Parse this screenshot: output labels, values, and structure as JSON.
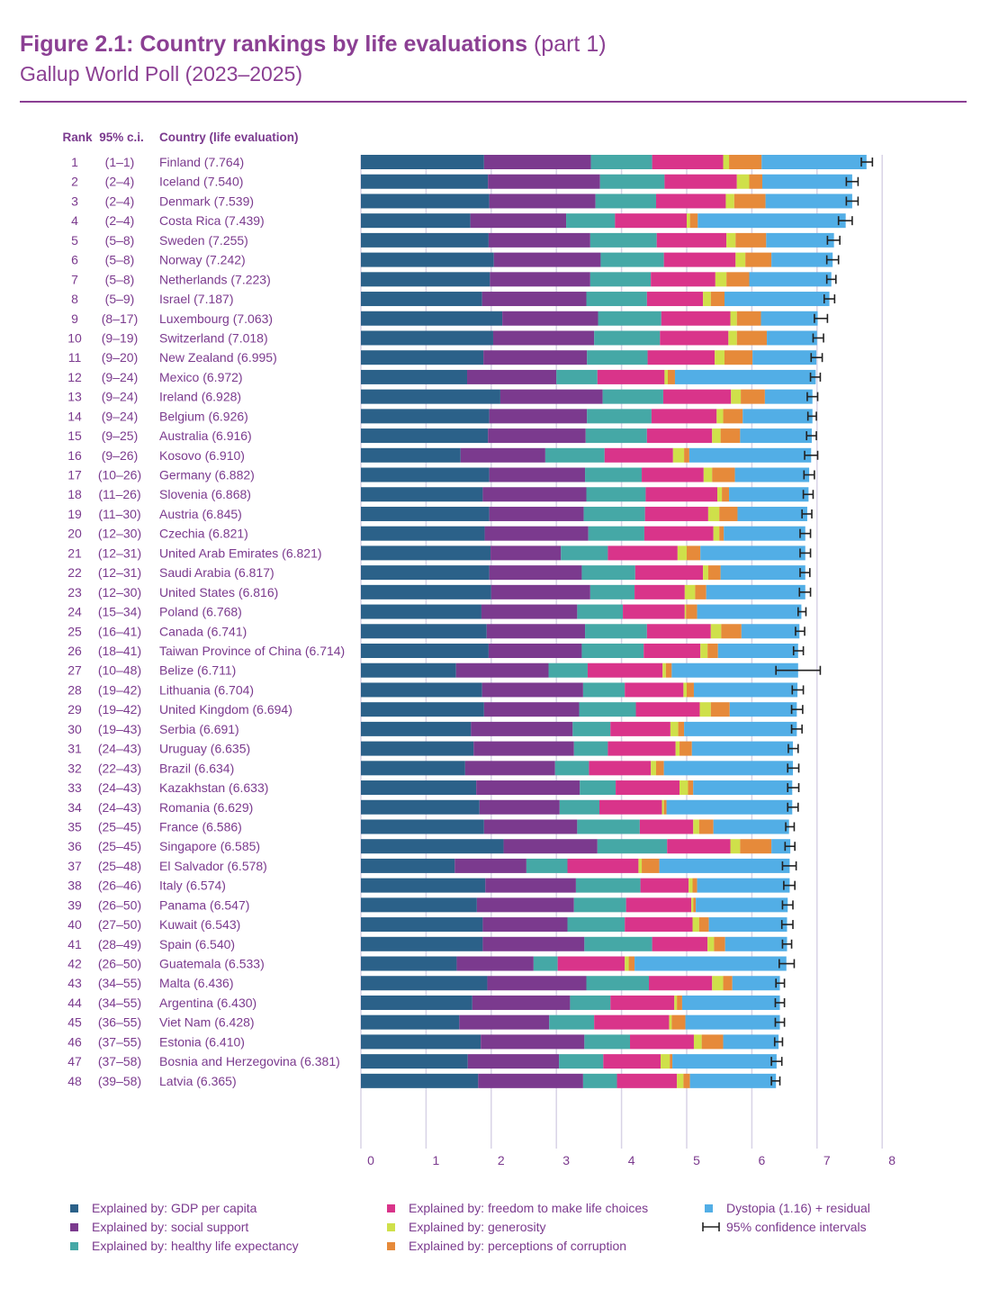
{
  "title": {
    "bold": "Figure 2.1: Country rankings by life evaluations",
    "light": "(part 1)",
    "subtitle": "Gallup World Poll (2023–2025)"
  },
  "columns": {
    "rank": "Rank",
    "ci": "95% c.i.",
    "country": "Country (life evaluation)"
  },
  "colors": {
    "gdp": "#2b6189",
    "social": "#7b3a8e",
    "health": "#45a8a6",
    "freedom": "#d9348a",
    "generosity": "#cfe04a",
    "corruption": "#e68a3a",
    "dystopia": "#52aee6",
    "text": "#7b3a8e",
    "grid": "#d8d3e6"
  },
  "legend": [
    {
      "key": "gdp",
      "label": "Explained by: GDP per capita"
    },
    {
      "key": "social",
      "label": "Explained by: social support"
    },
    {
      "key": "health",
      "label": "Explained by: healthy life expectancy"
    },
    {
      "key": "freedom",
      "label": "Explained by: freedom to make life choices"
    },
    {
      "key": "generosity",
      "label": "Explained by: generosity"
    },
    {
      "key": "corruption",
      "label": "Explained by: perceptions of corruption"
    },
    {
      "key": "dystopia",
      "label": "Dystopia (1.16) + residual"
    },
    {
      "key": "ci",
      "label": "95% confidence intervals"
    }
  ],
  "chart_data": {
    "type": "bar",
    "orientation": "horizontal",
    "stacked": true,
    "xlim": [
      0,
      8
    ],
    "x_ticks": [
      "0",
      "1",
      "2",
      "3",
      "4",
      "5",
      "6",
      "7",
      "8"
    ],
    "grid": true,
    "components": [
      "gdp",
      "social",
      "health",
      "freedom",
      "generosity",
      "corruption",
      "dystopia"
    ],
    "rows": [
      {
        "rank": "1",
        "ci": "(1–1)",
        "label": "Finland (7.764)",
        "score": 7.764,
        "parts": [
          1.89,
          1.64,
          0.94,
          1.09,
          0.09,
          0.5,
          1.61
        ],
        "ci_low": 7.68,
        "ci_high": 7.85
      },
      {
        "rank": "2",
        "ci": "(2–4)",
        "label": "Iceland (7.540)",
        "score": 7.54,
        "parts": [
          1.95,
          1.72,
          0.99,
          1.11,
          0.19,
          0.2,
          1.38
        ],
        "ci_low": 7.45,
        "ci_high": 7.63
      },
      {
        "rank": "3",
        "ci": "(2–4)",
        "label": "Denmark (7.539)",
        "score": 7.539,
        "parts": [
          1.97,
          1.63,
          0.93,
          1.07,
          0.13,
          0.48,
          1.33
        ],
        "ci_low": 7.45,
        "ci_high": 7.63
      },
      {
        "rank": "4",
        "ci": "(2–4)",
        "label": "Costa Rica (7.439)",
        "score": 7.439,
        "parts": [
          1.68,
          1.47,
          0.75,
          1.1,
          0.05,
          0.12,
          2.27
        ],
        "ci_low": 7.33,
        "ci_high": 7.54
      },
      {
        "rank": "5",
        "ci": "(5–8)",
        "label": "Sweden (7.255)",
        "score": 7.255,
        "parts": [
          1.96,
          1.56,
          1.02,
          1.07,
          0.14,
          0.47,
          1.04
        ],
        "ci_low": 7.16,
        "ci_high": 7.35
      },
      {
        "rank": "6",
        "ci": "(5–8)",
        "label": "Norway (7.242)",
        "score": 7.242,
        "parts": [
          2.04,
          1.64,
          0.97,
          1.1,
          0.15,
          0.4,
          0.94
        ],
        "ci_low": 7.15,
        "ci_high": 7.33
      },
      {
        "rank": "7",
        "ci": "(5–8)",
        "label": "Netherlands (7.223)",
        "score": 7.223,
        "parts": [
          1.98,
          1.54,
          0.93,
          0.99,
          0.17,
          0.35,
          1.26
        ],
        "ci_low": 7.15,
        "ci_high": 7.29
      },
      {
        "rank": "8",
        "ci": "(5–9)",
        "label": "Israel (7.187)",
        "score": 7.187,
        "parts": [
          1.86,
          1.6,
          0.93,
          0.86,
          0.12,
          0.21,
          1.61
        ],
        "ci_low": 7.11,
        "ci_high": 7.27
      },
      {
        "rank": "9",
        "ci": "(8–17)",
        "label": "Luxembourg (7.063)",
        "score": 7.063,
        "parts": [
          2.17,
          1.47,
          0.97,
          1.06,
          0.1,
          0.37,
          0.87
        ],
        "ci_low": 6.96,
        "ci_high": 7.16
      },
      {
        "rank": "10",
        "ci": "(9–19)",
        "label": "Switzerland (7.018)",
        "score": 7.018,
        "parts": [
          2.03,
          1.55,
          1.01,
          1.05,
          0.13,
          0.46,
          0.77
        ],
        "ci_low": 6.94,
        "ci_high": 7.1
      },
      {
        "rank": "11",
        "ci": "(9–20)",
        "label": "New Zealand (6.995)",
        "score": 6.995,
        "parts": [
          1.88,
          1.59,
          0.93,
          1.03,
          0.15,
          0.43,
          0.98
        ],
        "ci_low": 6.91,
        "ci_high": 7.08
      },
      {
        "rank": "12",
        "ci": "(9–24)",
        "label": "Mexico (6.972)",
        "score": 6.972,
        "parts": [
          1.63,
          1.37,
          0.63,
          1.03,
          0.05,
          0.11,
          2.16
        ],
        "ci_low": 6.9,
        "ci_high": 7.05
      },
      {
        "rank": "13",
        "ci": "(9–24)",
        "label": "Ireland (6.928)",
        "score": 6.928,
        "parts": [
          2.14,
          1.57,
          0.93,
          1.04,
          0.15,
          0.37,
          0.73
        ],
        "ci_low": 6.85,
        "ci_high": 7.01
      },
      {
        "rank": "14",
        "ci": "(9–24)",
        "label": "Belgium (6.926)",
        "score": 6.926,
        "parts": [
          1.97,
          1.5,
          0.99,
          1.0,
          0.1,
          0.3,
          1.07
        ],
        "ci_low": 6.86,
        "ci_high": 6.99
      },
      {
        "rank": "15",
        "ci": "(9–25)",
        "label": "Australia (6.916)",
        "score": 6.916,
        "parts": [
          1.95,
          1.5,
          0.94,
          1.0,
          0.13,
          0.3,
          1.1
        ],
        "ci_low": 6.84,
        "ci_high": 6.99
      },
      {
        "rank": "16",
        "ci": "(9–26)",
        "label": "Kosovo (6.910)",
        "score": 6.91,
        "parts": [
          1.53,
          1.3,
          0.91,
          1.05,
          0.17,
          0.08,
          1.87
        ],
        "ci_low": 6.81,
        "ci_high": 7.01
      },
      {
        "rank": "17",
        "ci": "(10–26)",
        "label": "Germany (6.882)",
        "score": 6.882,
        "parts": [
          1.97,
          1.47,
          0.87,
          0.95,
          0.13,
          0.35,
          1.14
        ],
        "ci_low": 6.8,
        "ci_high": 6.96
      },
      {
        "rank": "18",
        "ci": "(11–26)",
        "label": "Slovenia (6.868)",
        "score": 6.868,
        "parts": [
          1.87,
          1.59,
          0.91,
          1.1,
          0.07,
          0.11,
          1.22
        ],
        "ci_low": 6.79,
        "ci_high": 6.94
      },
      {
        "rank": "19",
        "ci": "(11–30)",
        "label": "Austria (6.845)",
        "score": 6.845,
        "parts": [
          1.97,
          1.45,
          0.94,
          0.97,
          0.17,
          0.28,
          1.07
        ],
        "ci_low": 6.77,
        "ci_high": 6.92
      },
      {
        "rank": "20",
        "ci": "(12–30)",
        "label": "Czechia (6.821)",
        "score": 6.821,
        "parts": [
          1.9,
          1.59,
          0.86,
          1.06,
          0.09,
          0.07,
          1.25
        ],
        "ci_low": 6.74,
        "ci_high": 6.9
      },
      {
        "rank": "21",
        "ci": "(12–31)",
        "label": "United Arab Emirates (6.821)",
        "score": 6.821,
        "parts": [
          1.99,
          1.08,
          0.72,
          1.07,
          0.14,
          0.21,
          1.61
        ],
        "ci_low": 6.74,
        "ci_high": 6.9
      },
      {
        "rank": "22",
        "ci": "(12–31)",
        "label": "Saudi Arabia (6.817)",
        "score": 6.817,
        "parts": [
          1.97,
          1.42,
          0.82,
          1.04,
          0.08,
          0.19,
          1.3
        ],
        "ci_low": 6.74,
        "ci_high": 6.89
      },
      {
        "rank": "23",
        "ci": "(12–30)",
        "label": "United States (6.816)",
        "score": 6.816,
        "parts": [
          2.0,
          1.52,
          0.68,
          0.77,
          0.16,
          0.17,
          1.52
        ],
        "ci_low": 6.73,
        "ci_high": 6.9
      },
      {
        "rank": "24",
        "ci": "(15–34)",
        "label": "Poland (6.768)",
        "score": 6.768,
        "parts": [
          1.85,
          1.47,
          0.7,
          0.95,
          0.02,
          0.17,
          1.6
        ],
        "ci_low": 6.71,
        "ci_high": 6.83
      },
      {
        "rank": "25",
        "ci": "(16–41)",
        "label": "Canada (6.741)",
        "score": 6.741,
        "parts": [
          1.93,
          1.51,
          0.95,
          0.98,
          0.16,
          0.31,
          0.89
        ],
        "ci_low": 6.67,
        "ci_high": 6.81
      },
      {
        "rank": "26",
        "ci": "(18–41)",
        "label": "Taiwan Province of China (6.714)",
        "score": 6.714,
        "parts": [
          1.96,
          1.43,
          0.95,
          0.87,
          0.11,
          0.16,
          1.23
        ],
        "ci_low": 6.64,
        "ci_high": 6.79
      },
      {
        "rank": "27",
        "ci": "(10–48)",
        "label": "Belize (6.711)",
        "score": 6.711,
        "parts": [
          1.46,
          1.42,
          0.6,
          1.15,
          0.05,
          0.09,
          1.94
        ],
        "ci_low": 6.37,
        "ci_high": 7.05
      },
      {
        "rank": "28",
        "ci": "(19–42)",
        "label": "Lithuania (6.704)",
        "score": 6.704,
        "parts": [
          1.86,
          1.55,
          0.64,
          0.9,
          0.05,
          0.11,
          1.59
        ],
        "ci_low": 6.62,
        "ci_high": 6.79
      },
      {
        "rank": "29",
        "ci": "(19–42)",
        "label": "United Kingdom (6.694)",
        "score": 6.694,
        "parts": [
          1.89,
          1.46,
          0.87,
          0.98,
          0.17,
          0.29,
          1.03
        ],
        "ci_low": 6.61,
        "ci_high": 6.78
      },
      {
        "rank": "30",
        "ci": "(19–43)",
        "label": "Serbia (6.691)",
        "score": 6.691,
        "parts": [
          1.69,
          1.56,
          0.58,
          0.92,
          0.12,
          0.09,
          1.73
        ],
        "ci_low": 6.61,
        "ci_high": 6.77
      },
      {
        "rank": "31",
        "ci": "(24–43)",
        "label": "Uruguay (6.635)",
        "score": 6.635,
        "parts": [
          1.73,
          1.54,
          0.52,
          1.04,
          0.06,
          0.19,
          1.55
        ],
        "ci_low": 6.56,
        "ci_high": 6.71
      },
      {
        "rank": "32",
        "ci": "(22–43)",
        "label": "Brazil (6.634)",
        "score": 6.634,
        "parts": [
          1.6,
          1.38,
          0.52,
          0.95,
          0.08,
          0.12,
          1.98
        ],
        "ci_low": 6.55,
        "ci_high": 6.72
      },
      {
        "rank": "33",
        "ci": "(24–43)",
        "label": "Kazakhstan (6.633)",
        "score": 6.633,
        "parts": [
          1.77,
          1.59,
          0.55,
          0.98,
          0.13,
          0.08,
          1.52
        ],
        "ci_low": 6.55,
        "ci_high": 6.72
      },
      {
        "rank": "34",
        "ci": "(24–43)",
        "label": "Romania (6.629)",
        "score": 6.629,
        "parts": [
          1.82,
          1.23,
          0.61,
          0.96,
          0.03,
          0.04,
          1.93
        ],
        "ci_low": 6.55,
        "ci_high": 6.71
      },
      {
        "rank": "35",
        "ci": "(25–45)",
        "label": "France (6.586)",
        "score": 6.586,
        "parts": [
          1.89,
          1.43,
          0.96,
          0.82,
          0.09,
          0.22,
          1.16
        ],
        "ci_low": 6.52,
        "ci_high": 6.65
      },
      {
        "rank": "36",
        "ci": "(25–45)",
        "label": "Singapore (6.585)",
        "score": 6.585,
        "parts": [
          2.19,
          1.44,
          1.07,
          0.97,
          0.15,
          0.48,
          0.29
        ],
        "ci_low": 6.51,
        "ci_high": 6.66
      },
      {
        "rank": "37",
        "ci": "(25–48)",
        "label": "El Salvador (6.578)",
        "score": 6.578,
        "parts": [
          1.44,
          1.1,
          0.63,
          1.09,
          0.05,
          0.27,
          2.0
        ],
        "ci_low": 6.47,
        "ci_high": 6.68
      },
      {
        "rank": "38",
        "ci": "(26–46)",
        "label": "Italy (6.574)",
        "score": 6.574,
        "parts": [
          1.91,
          1.39,
          0.99,
          0.74,
          0.06,
          0.07,
          1.42
        ],
        "ci_low": 6.49,
        "ci_high": 6.66
      },
      {
        "rank": "39",
        "ci": "(26–50)",
        "label": "Panama (6.547)",
        "score": 6.547,
        "parts": [
          1.78,
          1.49,
          0.8,
          1.0,
          0.03,
          0.04,
          1.41
        ],
        "ci_low": 6.47,
        "ci_high": 6.63
      },
      {
        "rank": "40",
        "ci": "(27–50)",
        "label": "Kuwait (6.543)",
        "score": 6.543,
        "parts": [
          1.87,
          1.3,
          0.88,
          1.04,
          0.1,
          0.15,
          1.2
        ],
        "ci_low": 6.46,
        "ci_high": 6.63
      },
      {
        "rank": "41",
        "ci": "(28–49)",
        "label": "Spain (6.540)",
        "score": 6.54,
        "parts": [
          1.87,
          1.56,
          1.04,
          0.85,
          0.1,
          0.17,
          0.95
        ],
        "ci_low": 6.47,
        "ci_high": 6.61
      },
      {
        "rank": "42",
        "ci": "(26–50)",
        "label": "Guatemala (6.533)",
        "score": 6.533,
        "parts": [
          1.47,
          1.18,
          0.37,
          1.03,
          0.06,
          0.09,
          2.33
        ],
        "ci_low": 6.42,
        "ci_high": 6.65
      },
      {
        "rank": "43",
        "ci": "(34–55)",
        "label": "Malta (6.436)",
        "score": 6.436,
        "parts": [
          1.94,
          1.52,
          0.96,
          0.97,
          0.17,
          0.14,
          0.73
        ],
        "ci_low": 6.37,
        "ci_high": 6.5
      },
      {
        "rank": "44",
        "ci": "(34–55)",
        "label": "Argentina (6.430)",
        "score": 6.43,
        "parts": [
          1.71,
          1.5,
          0.62,
          0.98,
          0.04,
          0.08,
          1.5
        ],
        "ci_low": 6.36,
        "ci_high": 6.5
      },
      {
        "rank": "45",
        "ci": "(36–55)",
        "label": "Viet Nam (6.428)",
        "score": 6.428,
        "parts": [
          1.51,
          1.38,
          0.69,
          1.15,
          0.04,
          0.21,
          1.45
        ],
        "ci_low": 6.36,
        "ci_high": 6.5
      },
      {
        "rank": "46",
        "ci": "(37–55)",
        "label": "Estonia (6.410)",
        "score": 6.41,
        "parts": [
          1.84,
          1.59,
          0.7,
          0.98,
          0.12,
          0.33,
          0.85
        ],
        "ci_low": 6.35,
        "ci_high": 6.47
      },
      {
        "rank": "47",
        "ci": "(37–58)",
        "label": "Bosnia and Herzegovina (6.381)",
        "score": 6.381,
        "parts": [
          1.64,
          1.4,
          0.68,
          0.88,
          0.14,
          0.04,
          1.6
        ],
        "ci_low": 6.3,
        "ci_high": 6.46
      },
      {
        "rank": "48",
        "ci": "(39–58)",
        "label": "Latvia (6.365)",
        "score": 6.365,
        "parts": [
          1.8,
          1.61,
          0.52,
          0.92,
          0.1,
          0.1,
          1.32
        ],
        "ci_low": 6.3,
        "ci_high": 6.43
      }
    ]
  }
}
